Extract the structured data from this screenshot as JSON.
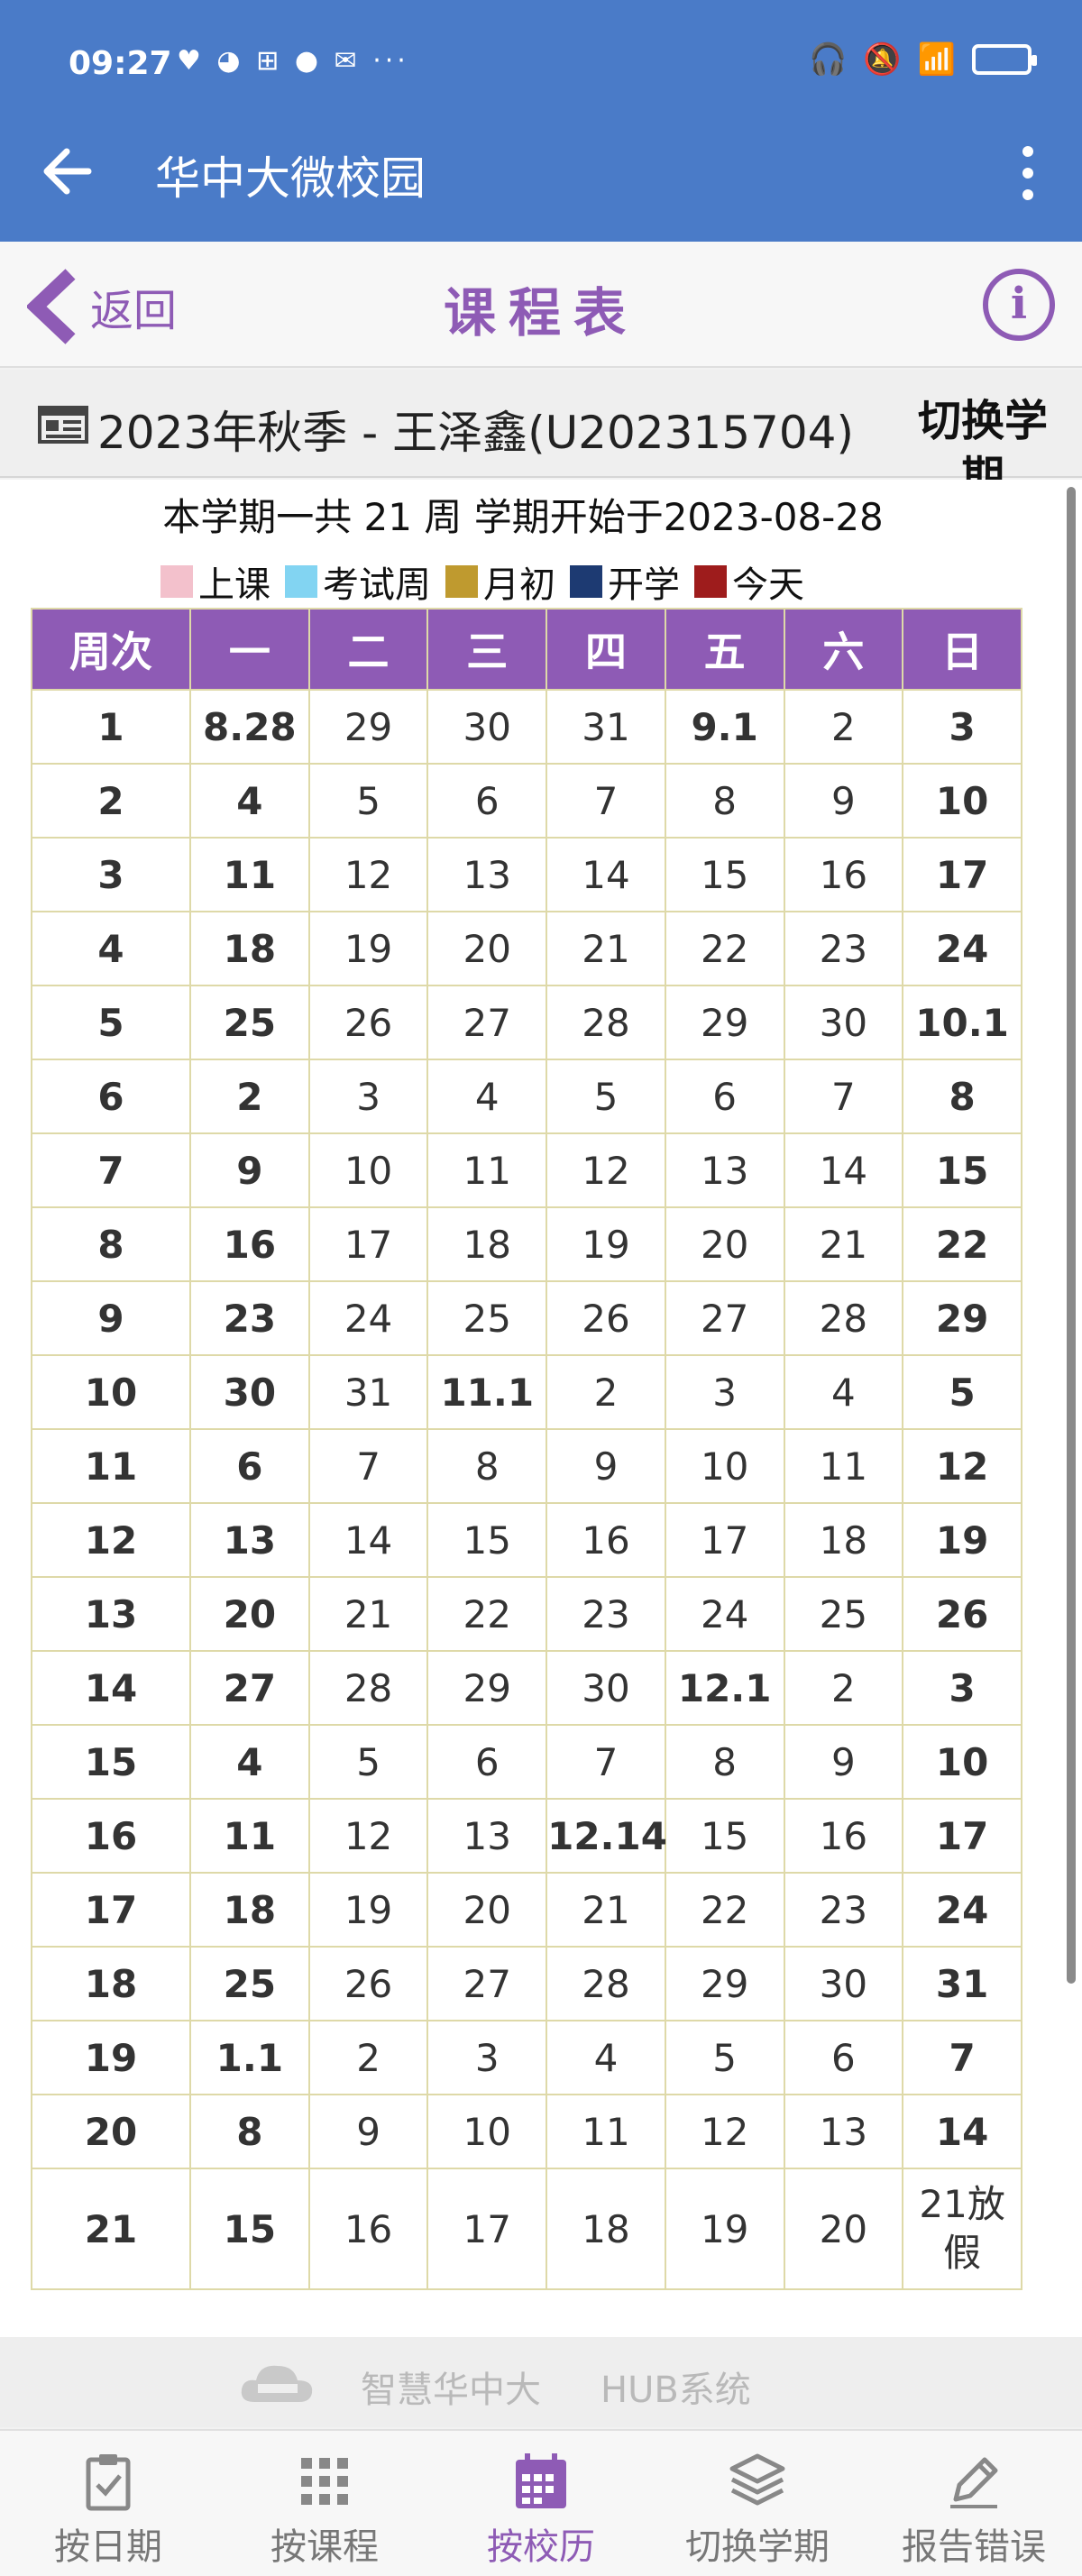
{
  "status_bar": {
    "time": "09:27",
    "icons_text": "♥ ◕ ⊞ ● ✉ ···"
  },
  "app_bar": {
    "title": "华中大微校园"
  },
  "page_header": {
    "back_label": "返回",
    "title": "课程表"
  },
  "term": {
    "label": "2023年秋季 - 王泽鑫(U202315704)",
    "switch_label": "切换学期"
  },
  "summary": "本学期一共 21 周 学期开始于2023-08-28",
  "legend": [
    {
      "label": "上课",
      "color": "#f3c1cc"
    },
    {
      "label": "考试周",
      "color": "#82d4f2"
    },
    {
      "label": "月初",
      "color": "#bf9a2f"
    },
    {
      "label": "开学",
      "color": "#1d3a72"
    },
    {
      "label": "今天",
      "color": "#9e1c1c"
    }
  ],
  "calendar": {
    "headers": [
      "周次",
      "一",
      "二",
      "三",
      "四",
      "五",
      "六",
      "日"
    ],
    "rows": [
      [
        "1",
        "8.28",
        "29",
        "30",
        "31",
        "9.1",
        "2",
        "3"
      ],
      [
        "2",
        "4",
        "5",
        "6",
        "7",
        "8",
        "9",
        "10"
      ],
      [
        "3",
        "11",
        "12",
        "13",
        "14",
        "15",
        "16",
        "17"
      ],
      [
        "4",
        "18",
        "19",
        "20",
        "21",
        "22",
        "23",
        "24"
      ],
      [
        "5",
        "25",
        "26",
        "27",
        "28",
        "29",
        "30",
        "10.1"
      ],
      [
        "6",
        "2",
        "3",
        "4",
        "5",
        "6",
        "7",
        "8"
      ],
      [
        "7",
        "9",
        "10",
        "11",
        "12",
        "13",
        "14",
        "15"
      ],
      [
        "8",
        "16",
        "17",
        "18",
        "19",
        "20",
        "21",
        "22"
      ],
      [
        "9",
        "23",
        "24",
        "25",
        "26",
        "27",
        "28",
        "29"
      ],
      [
        "10",
        "30",
        "31",
        "11.1",
        "2",
        "3",
        "4",
        "5"
      ],
      [
        "11",
        "6",
        "7",
        "8",
        "9",
        "10",
        "11",
        "12"
      ],
      [
        "12",
        "13",
        "14",
        "15",
        "16",
        "17",
        "18",
        "19"
      ],
      [
        "13",
        "20",
        "21",
        "22",
        "23",
        "24",
        "25",
        "26"
      ],
      [
        "14",
        "27",
        "28",
        "29",
        "30",
        "12.1",
        "2",
        "3"
      ],
      [
        "15",
        "4",
        "5",
        "6",
        "7",
        "8",
        "9",
        "10"
      ],
      [
        "16",
        "11",
        "12",
        "13",
        "12.14",
        "15",
        "16",
        "17"
      ],
      [
        "17",
        "18",
        "19",
        "20",
        "21",
        "22",
        "23",
        "24"
      ],
      [
        "18",
        "25",
        "26",
        "27",
        "28",
        "29",
        "30",
        "31"
      ],
      [
        "19",
        "1.1",
        "2",
        "3",
        "4",
        "5",
        "6",
        "7"
      ],
      [
        "20",
        "8",
        "9",
        "10",
        "11",
        "12",
        "13",
        "14"
      ],
      [
        "21",
        "15",
        "16",
        "17",
        "18",
        "19",
        "20",
        "21放假"
      ]
    ],
    "cell_kinds": [
      [
        "w",
        "termstart",
        "c",
        "c",
        "c",
        "monthstart",
        "c",
        "s"
      ],
      [
        "w",
        "m",
        "",
        "",
        "",
        "",
        "",
        "s"
      ],
      [
        "w",
        "mc",
        "c",
        "c",
        "c",
        "c",
        "c",
        "s"
      ],
      [
        "w",
        "mc",
        "c",
        "c",
        "",
        "c",
        "c",
        "s"
      ],
      [
        "w",
        "mc",
        "c",
        "c",
        "c",
        "c",
        "",
        "monthstart"
      ],
      [
        "w",
        "mc",
        "c",
        "c",
        "c",
        "c",
        "",
        "s"
      ],
      [
        "w",
        "mc",
        "c",
        "c",
        "c",
        "c",
        "c",
        "s"
      ],
      [
        "w",
        "mc",
        "c",
        "c",
        "c",
        "c",
        "c",
        "s"
      ],
      [
        "w",
        "mc",
        "c",
        "c",
        "c",
        "c",
        "",
        "s"
      ],
      [
        "w",
        "mc",
        "c",
        "cw",
        "c",
        "c",
        "c",
        "s"
      ],
      [
        "w",
        "mc",
        "c",
        "c",
        "c",
        "c",
        "",
        "s"
      ],
      [
        "w",
        "mc",
        "c",
        "c",
        "c",
        "c",
        "c",
        "s"
      ],
      [
        "w",
        "mc",
        "c",
        "c",
        "c",
        "c",
        "c",
        "s"
      ],
      [
        "w",
        "mc",
        "c",
        "c",
        "c",
        "cw",
        "c",
        "s"
      ],
      [
        "w",
        "mc",
        "c",
        "c",
        "c",
        "c",
        "c",
        "s"
      ],
      [
        "w",
        "mc",
        "c",
        "c",
        "cw",
        "c",
        "",
        "s"
      ],
      [
        "w",
        "mc",
        "c",
        "c",
        "c",
        "c",
        "",
        "s"
      ],
      [
        "w",
        "mc",
        "c",
        "c",
        "c",
        "",
        "",
        "s"
      ],
      [
        "w",
        "mcw",
        "",
        "",
        "",
        "",
        "",
        "s"
      ],
      [
        "w",
        "me",
        "e",
        "e",
        "e",
        "e",
        "e",
        "se"
      ],
      [
        "w",
        "me",
        "e",
        "e",
        "e",
        "e",
        "",
        "h"
      ]
    ]
  },
  "footer": {
    "brand_name": "智慧华中大",
    "brand_system": "HUB系统"
  },
  "tabs": [
    {
      "label": "按日期",
      "icon": "clipboard-check-icon",
      "active": false
    },
    {
      "label": "按课程",
      "icon": "grid-dots-icon",
      "active": false
    },
    {
      "label": "按校历",
      "icon": "calendar-icon",
      "active": true
    },
    {
      "label": "切换学期",
      "icon": "layers-icon",
      "active": false
    },
    {
      "label": "报告错误",
      "icon": "pen-icon",
      "active": false
    }
  ]
}
